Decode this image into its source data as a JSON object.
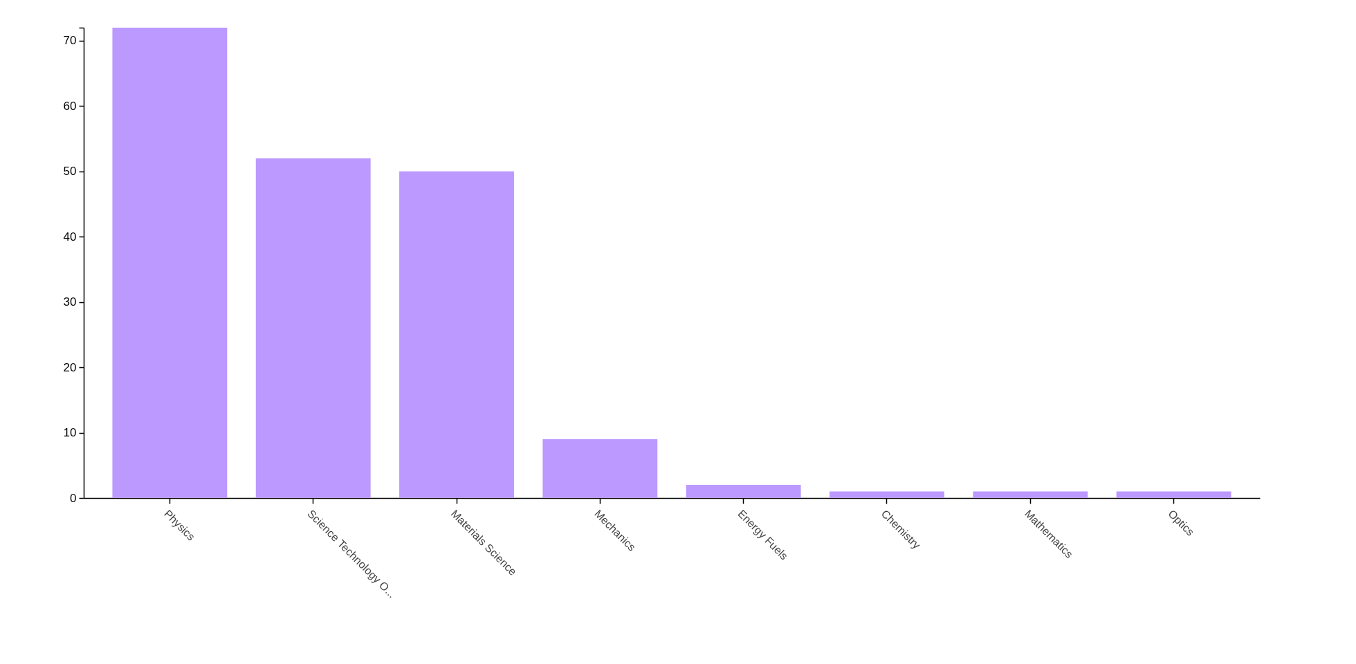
{
  "chart_data": {
    "type": "bar",
    "categories": [
      "Physics",
      "Science Technology O...",
      "Materials Science",
      "Mechanics",
      "Energy Fuels",
      "Chemistry",
      "Mathematics",
      "Optics"
    ],
    "values": [
      72,
      52,
      50,
      9,
      2,
      1,
      1,
      1
    ],
    "color": "#bb99ff",
    "ylim": [
      0,
      72
    ],
    "yticks": [
      0,
      10,
      20,
      30,
      40,
      50,
      60,
      70,
      {
        "value": 72,
        "label": null
      }
    ]
  }
}
